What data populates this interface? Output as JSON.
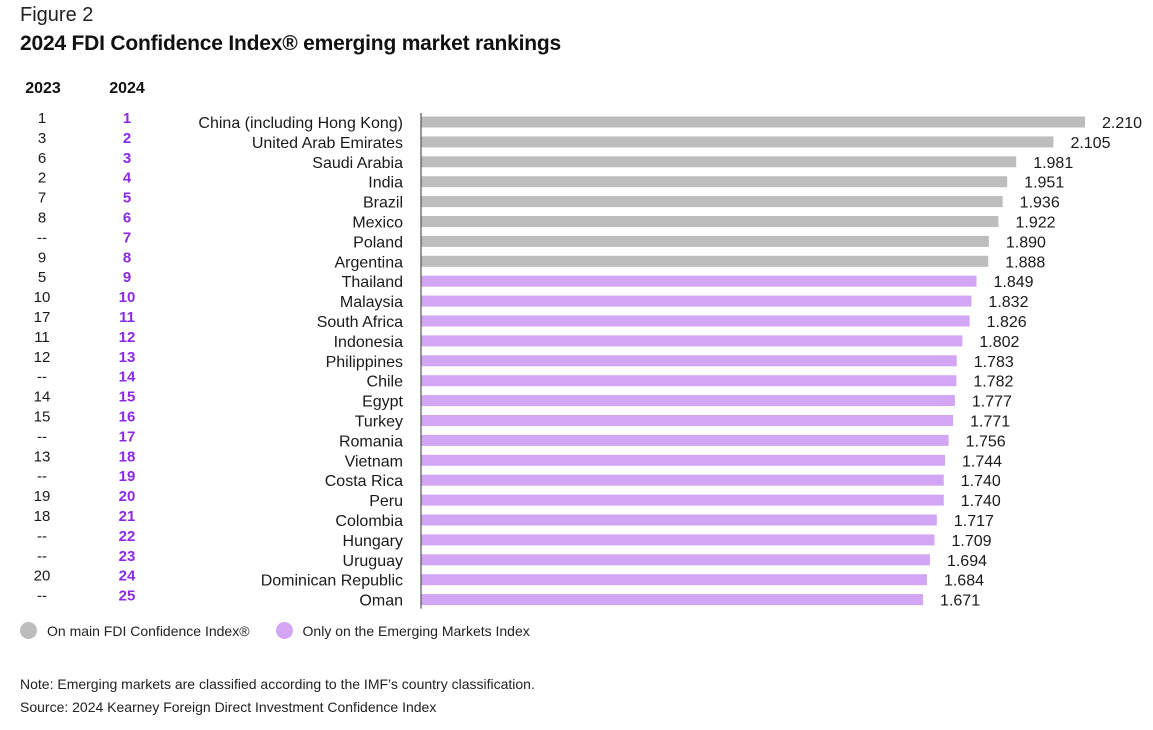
{
  "figure_label": "Figure 2",
  "title": "2024 FDI Confidence Index® emerging market rankings",
  "col_headers": {
    "y2023": "2023",
    "y2024": "2024"
  },
  "colors": {
    "main": "#bdbdbd",
    "emerging": "#d3a6f5",
    "rank2024": "#8a2be2",
    "axis": "#555555"
  },
  "chart_data": {
    "type": "bar",
    "orientation": "horizontal",
    "categories": [
      "China (including Hong Kong)",
      "United Arab Emirates",
      "Saudi Arabia",
      "India",
      "Brazil",
      "Mexico",
      "Poland",
      "Argentina",
      "Thailand",
      "Malaysia",
      "South Africa",
      "Indonesia",
      "Philippines",
      "Chile",
      "Egypt",
      "Turkey",
      "Romania",
      "Vietnam",
      "Costa Rica",
      "Peru",
      "Colombia",
      "Hungary",
      "Uruguay",
      "Dominican Republic",
      "Oman"
    ],
    "values": [
      2.21,
      2.105,
      1.981,
      1.951,
      1.936,
      1.922,
      1.89,
      1.888,
      1.849,
      1.832,
      1.826,
      1.802,
      1.783,
      1.782,
      1.777,
      1.771,
      1.756,
      1.744,
      1.74,
      1.74,
      1.717,
      1.709,
      1.694,
      1.684,
      1.671
    ],
    "value_labels": [
      "2.210",
      "2.105",
      "1.981",
      "1.951",
      "1.936",
      "1.922",
      "1.890",
      "1.888",
      "1.849",
      "1.832",
      "1.826",
      "1.802",
      "1.783",
      "1.782",
      "1.777",
      "1.771",
      "1.756",
      "1.744",
      "1.740",
      "1.740",
      "1.717",
      "1.709",
      "1.694",
      "1.684",
      "1.671"
    ],
    "rank_2023": [
      "1",
      "3",
      "6",
      "2",
      "7",
      "8",
      "--",
      "9",
      "5",
      "10",
      "17",
      "11",
      "12",
      "--",
      "14",
      "15",
      "--",
      "13",
      "--",
      "19",
      "18",
      "--",
      "--",
      "20",
      "--"
    ],
    "rank_2024": [
      "1",
      "2",
      "3",
      "4",
      "5",
      "6",
      "7",
      "8",
      "9",
      "10",
      "11",
      "12",
      "13",
      "14",
      "15",
      "16",
      "17",
      "18",
      "19",
      "20",
      "21",
      "22",
      "23",
      "24",
      "25"
    ],
    "group": [
      "main",
      "main",
      "main",
      "main",
      "main",
      "main",
      "main",
      "main",
      "emerging",
      "emerging",
      "emerging",
      "emerging",
      "emerging",
      "emerging",
      "emerging",
      "emerging",
      "emerging",
      "emerging",
      "emerging",
      "emerging",
      "emerging",
      "emerging",
      "emerging",
      "emerging",
      "emerging"
    ],
    "xlim": [
      0,
      2.21
    ]
  },
  "legend": {
    "main": "On main FDI Confidence Index®",
    "emerging": "Only on the Emerging Markets Index"
  },
  "note": "Note: Emerging markets are classified according to the IMF’s country classification.",
  "source": "Source: 2024 Kearney Foreign Direct Investment Confidence Index"
}
